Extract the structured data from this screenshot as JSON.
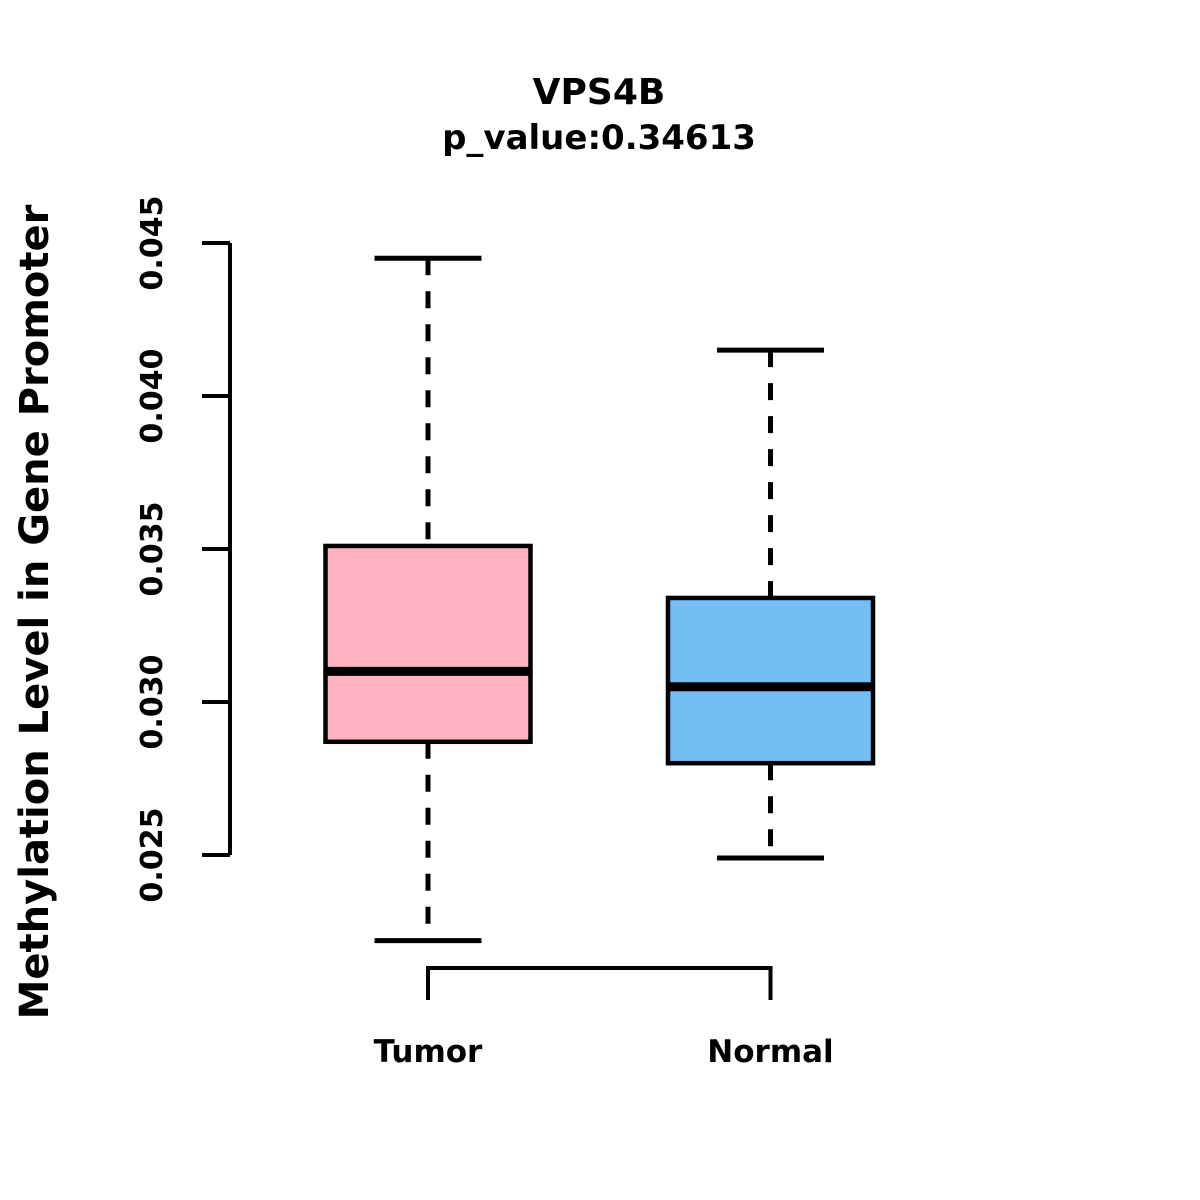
{
  "chart_data": {
    "type": "boxplot",
    "title": "VPS4B",
    "subtitle": "p_value:0.34613",
    "ylabel": "Methylation Level in Gene Promoter",
    "xlabel": "",
    "yticks": [
      0.025,
      0.03,
      0.035,
      0.04,
      0.045
    ],
    "ylim": [
      0.025,
      0.045
    ],
    "grid": false,
    "legend": "none",
    "line_color": "#000000",
    "background_color": "#FFFFFF",
    "groups": [
      {
        "label": "Tumor",
        "fill_color": "#FFB3C1",
        "whisker_low": 0.0222,
        "q1": 0.0287,
        "median": 0.031,
        "q3": 0.0351,
        "whisker_high": 0.0445
      },
      {
        "label": "Normal",
        "fill_color": "#74BEF5",
        "whisker_low": 0.0249,
        "q1": 0.028,
        "median": 0.0305,
        "q3": 0.0334,
        "whisker_high": 0.0415
      }
    ]
  }
}
